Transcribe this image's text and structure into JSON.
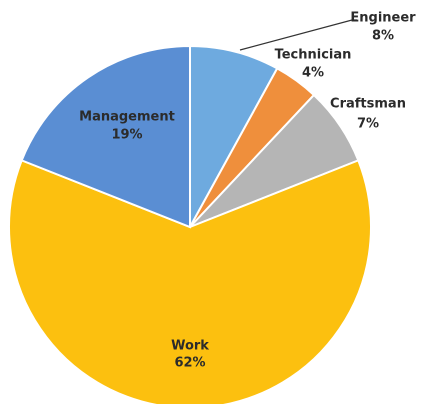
{
  "chart_data": {
    "type": "pie",
    "categories": [
      "Engineer",
      "Technician",
      "Craftsman",
      "Work",
      "Management"
    ],
    "values": [
      8,
      4,
      7,
      62,
      19
    ],
    "value_labels": [
      "8%",
      "4%",
      "7%",
      "62%",
      "19%"
    ],
    "colors": [
      "#6eaadf",
      "#ef8f3c",
      "#b5b5b5",
      "#fcc00f",
      "#5a8ed3"
    ]
  }
}
